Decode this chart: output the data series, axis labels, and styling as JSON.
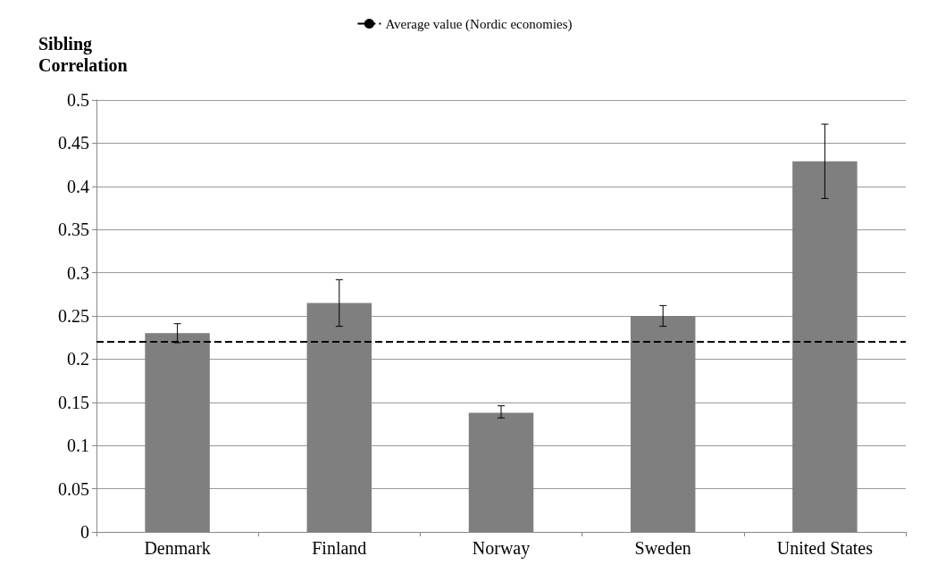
{
  "chart_data": {
    "type": "bar",
    "ylabel": "Sibling Correlation",
    "categories": [
      "Denmark",
      "Finland",
      "Norway",
      "Sweden",
      "United States"
    ],
    "values": [
      0.23,
      0.265,
      0.138,
      0.25,
      0.429
    ],
    "errors": [
      [
        0.219,
        0.241
      ],
      [
        0.238,
        0.292
      ],
      [
        0.132,
        0.146
      ],
      [
        0.238,
        0.262
      ],
      [
        0.386,
        0.472
      ]
    ],
    "color": "#7f7f7f",
    "ylim": [
      0,
      0.5
    ],
    "yticks": [
      0,
      0.05,
      0.1,
      0.15,
      0.2,
      0.25,
      0.3,
      0.35,
      0.4,
      0.45,
      0.5
    ],
    "grid": "y",
    "legend": "top",
    "ref_lines": [
      {
        "axis": "y",
        "value": 0.22,
        "label": "Average value (Nordic economies)",
        "color": "#000000",
        "line_style": "dashed"
      }
    ]
  }
}
